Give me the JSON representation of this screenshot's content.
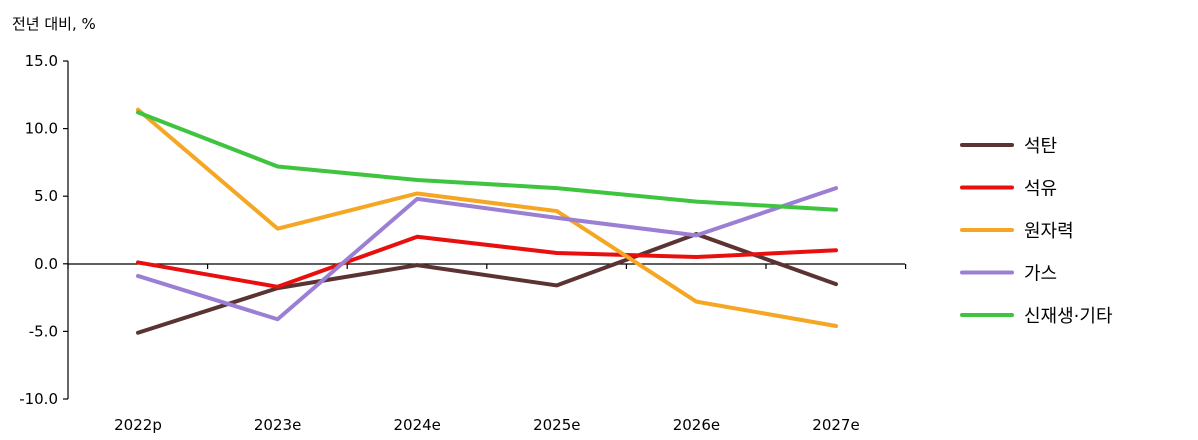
{
  "chart_data": {
    "type": "line",
    "ylabel": "전년 대비, %",
    "categories": [
      "2022p",
      "2023e",
      "2024e",
      "2025e",
      "2026e",
      "2027e"
    ],
    "ylim": [
      -10.0,
      15.0
    ],
    "yticks": [
      "15.0",
      "10.0",
      "5.0",
      "0.0",
      "-5.0",
      "-10.0"
    ],
    "ytick_values": [
      15,
      10,
      5,
      0,
      -5,
      -10
    ],
    "grid": false,
    "legend_position": "right",
    "series": [
      {
        "name": "석탄",
        "color": "#5a3332",
        "values": [
          -5.1,
          -1.8,
          -0.1,
          -1.6,
          2.2,
          -1.5
        ]
      },
      {
        "name": "석유",
        "color": "#e8100f",
        "values": [
          0.1,
          -1.7,
          2.0,
          0.8,
          0.5,
          1.0
        ]
      },
      {
        "name": "원자력",
        "color": "#f5a623",
        "values": [
          11.4,
          2.6,
          5.2,
          3.9,
          -2.8,
          -4.6
        ]
      },
      {
        "name": "가스",
        "color": "#9b7fd4",
        "values": [
          -0.9,
          -4.1,
          4.8,
          3.4,
          2.1,
          5.6
        ]
      },
      {
        "name": "신재생·기타",
        "color": "#3ec43e",
        "values": [
          11.2,
          7.2,
          6.2,
          5.6,
          4.6,
          4.0
        ]
      }
    ]
  }
}
